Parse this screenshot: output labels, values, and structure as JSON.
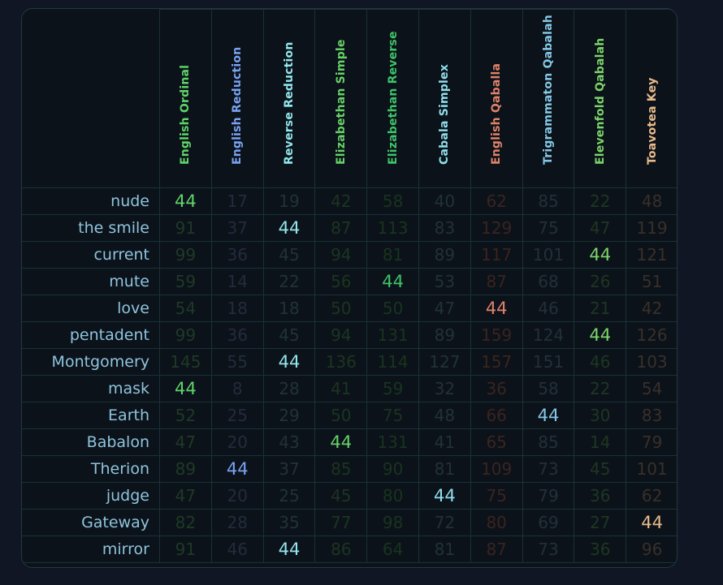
{
  "columns": [
    {
      "name": "English Ordinal",
      "color": "#5fd36a",
      "dim": "#1e3a26"
    },
    {
      "name": "English Reduction",
      "color": "#7aa2f2",
      "dim": "#222c3d"
    },
    {
      "name": "Reverse Reduction",
      "color": "#92e6ec",
      "dim": "#203238"
    },
    {
      "name": "Elizabethan Simple",
      "color": "#66d167",
      "dim": "#1b3521"
    },
    {
      "name": "Elizabethan Reverse",
      "color": "#3ec36a",
      "dim": "#18341f"
    },
    {
      "name": "Cabala Simplex",
      "color": "#90ddea",
      "dim": "#213237"
    },
    {
      "name": "English Qaballa",
      "color": "#e0826a",
      "dim": "#3a2420"
    },
    {
      "name": "Trigrammaton Qabalah",
      "color": "#83c8e6",
      "dim": "#223039"
    },
    {
      "name": "Elevenfold Qabalah",
      "color": "#7bd46a",
      "dim": "#1d3722"
    },
    {
      "name": "Toavotea Key",
      "color": "#e8bb8c",
      "dim": "#38302a"
    }
  ],
  "rows": [
    {
      "word": "nude",
      "values": [
        "44",
        "17",
        "19",
        "42",
        "58",
        "40",
        "62",
        "85",
        "22",
        "48"
      ]
    },
    {
      "word": "the smile",
      "values": [
        "91",
        "37",
        "44",
        "87",
        "113",
        "83",
        "129",
        "75",
        "47",
        "119"
      ]
    },
    {
      "word": "current",
      "values": [
        "99",
        "36",
        "45",
        "94",
        "81",
        "89",
        "117",
        "101",
        "44",
        "121"
      ]
    },
    {
      "word": "mute",
      "values": [
        "59",
        "14",
        "22",
        "56",
        "44",
        "53",
        "87",
        "68",
        "26",
        "51"
      ]
    },
    {
      "word": "love",
      "values": [
        "54",
        "18",
        "18",
        "50",
        "50",
        "47",
        "44",
        "46",
        "21",
        "42"
      ]
    },
    {
      "word": "pentadent",
      "values": [
        "99",
        "36",
        "45",
        "94",
        "131",
        "89",
        "159",
        "124",
        "44",
        "126"
      ]
    },
    {
      "word": "Montgomery",
      "values": [
        "145",
        "55",
        "44",
        "136",
        "114",
        "127",
        "157",
        "151",
        "46",
        "103"
      ]
    },
    {
      "word": "mask",
      "values": [
        "44",
        "8",
        "28",
        "41",
        "59",
        "32",
        "36",
        "58",
        "22",
        "54"
      ]
    },
    {
      "word": "Earth",
      "values": [
        "52",
        "25",
        "29",
        "50",
        "75",
        "48",
        "66",
        "44",
        "30",
        "83"
      ]
    },
    {
      "word": "Babalon",
      "values": [
        "47",
        "20",
        "43",
        "44",
        "131",
        "41",
        "65",
        "85",
        "14",
        "79"
      ]
    },
    {
      "word": "Therion",
      "values": [
        "89",
        "44",
        "37",
        "85",
        "90",
        "81",
        "109",
        "73",
        "45",
        "101"
      ]
    },
    {
      "word": "judge",
      "values": [
        "47",
        "20",
        "25",
        "45",
        "80",
        "44",
        "75",
        "79",
        "36",
        "62"
      ]
    },
    {
      "word": "Gateway",
      "values": [
        "82",
        "28",
        "35",
        "77",
        "98",
        "72",
        "80",
        "69",
        "27",
        "44"
      ]
    },
    {
      "word": "mirror",
      "values": [
        "91",
        "46",
        "44",
        "86",
        "64",
        "81",
        "87",
        "73",
        "36",
        "96"
      ]
    }
  ],
  "highlight_value": "44"
}
